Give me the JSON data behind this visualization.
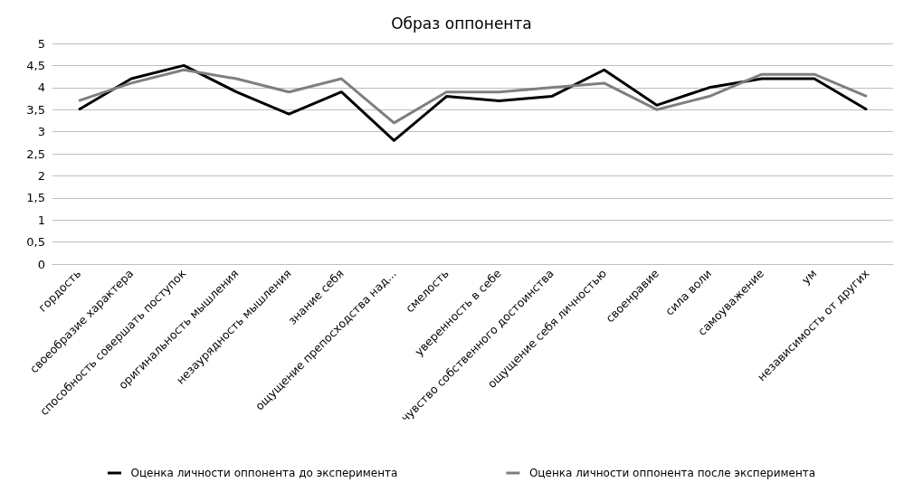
{
  "chart_data": {
    "type": "line",
    "title": "Образ оппонента",
    "categories": [
      "гордость",
      "своеобразие характера",
      "способность совершать поступок",
      "оригинальность мышления",
      "незаурядность мышления",
      "знание себя",
      "ощущение препосходства над...",
      "смелость",
      "уверенность в себе",
      "чувство собственного достоинства",
      "ощущение себя личностью",
      "своенравие",
      "сила воли",
      "самоуважение",
      "ум",
      "независимость от других"
    ],
    "series": [
      {
        "name": "Оценка личности оппонента до эксперимента",
        "color": "#000000",
        "values": [
          3.5,
          4.2,
          4.5,
          3.9,
          3.4,
          3.9,
          2.8,
          3.8,
          3.7,
          3.8,
          4.4,
          3.6,
          4.0,
          4.2,
          4.2,
          3.5
        ]
      },
      {
        "name": "Оценка личности оппонента после эксперимента",
        "color": "#7f7f7f",
        "values": [
          3.7,
          4.1,
          4.4,
          4.2,
          3.9,
          4.2,
          3.2,
          3.9,
          3.9,
          4.0,
          4.1,
          3.5,
          3.8,
          4.3,
          4.3,
          3.8
        ]
      }
    ],
    "ylim": [
      0,
      5
    ],
    "yticks": [
      0,
      {
        "value": 0.5,
        "label": "0,5"
      },
      1,
      {
        "value": 1.5,
        "label": "1,5"
      },
      2,
      {
        "value": 2.5,
        "label": "2,5"
      },
      3,
      {
        "value": 3.5,
        "label": "3,5"
      },
      4,
      {
        "value": 4.5,
        "label": "4,5"
      },
      5
    ],
    "grid": "y",
    "legend": "bottom",
    "marker": "none",
    "line_style": "solid"
  }
}
